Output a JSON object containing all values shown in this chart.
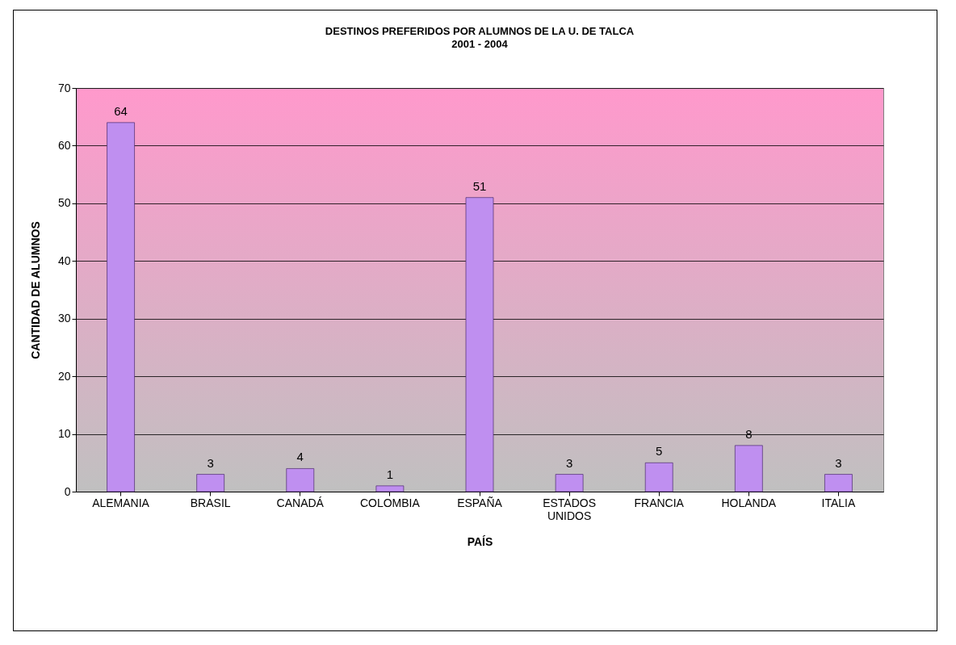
{
  "chart_data": {
    "type": "bar",
    "title": "DESTINOS PREFERIDOS POR ALUMNOS DE LA U. DE TALCA",
    "subtitle": "2001 - 2004",
    "xlabel": "PAÍS",
    "ylabel": "CANTIDAD DE ALUMNOS",
    "categories": [
      "ALEMANIA",
      "BRASIL",
      "CANADÁ",
      "COLOMBIA",
      "ESPAÑA",
      "ESTADOS UNIDOS",
      "FRANCIA",
      "HOLANDA",
      "ITALIA"
    ],
    "values": [
      64,
      3,
      4,
      1,
      51,
      3,
      5,
      8,
      3
    ],
    "color": "#bf8ff0",
    "ylim": [
      0,
      70
    ],
    "yticks": [
      0,
      10,
      20,
      30,
      40,
      50,
      60,
      70
    ],
    "grid": "y",
    "data_labels": true
  }
}
